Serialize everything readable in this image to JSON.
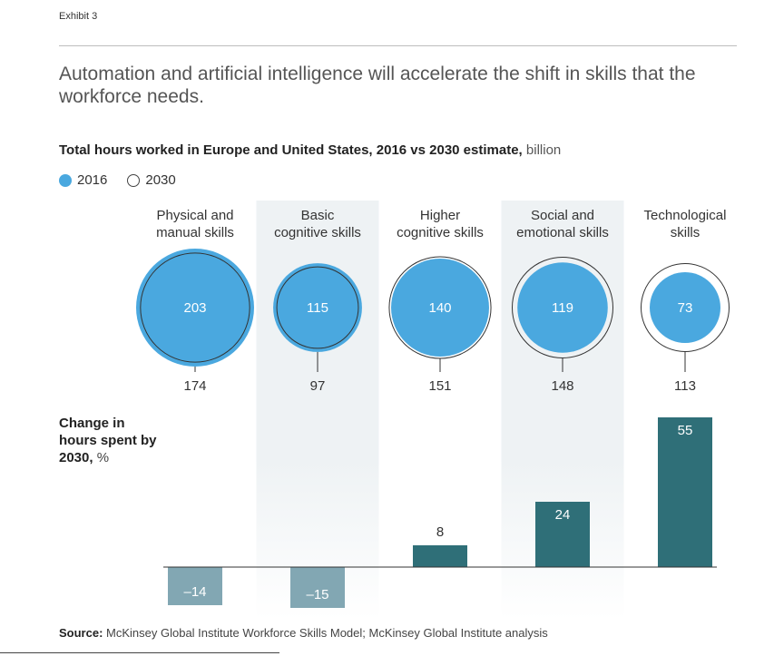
{
  "exhibit": "Exhibit 3",
  "headline": "Automation and artificial intelligence will accelerate the shift in skills that the workforce needs.",
  "subtitle": {
    "bold": "Total hours worked in Europe and United States, 2016 vs 2030 estimate,",
    "unit": "billion"
  },
  "legend": {
    "label_2016": "2016",
    "label_2030": "2030"
  },
  "colors": {
    "circle_2016": "#4aa8df",
    "bar_positive": "#2f6f78",
    "bar_negative": "#82a7b3",
    "band": "#eef2f4"
  },
  "change_label": {
    "bold": "Change in hours spent by 2030,",
    "unit": "%"
  },
  "source": {
    "label": "Source:",
    "text": "McKinsey Global Institute Workforce Skills Model; McKinsey Global Institute analysis"
  },
  "chart_data": {
    "type": "bar",
    "categories": [
      "Physical and manual skills",
      "Basic cognitive skills",
      "Higher cognitive skills",
      "Social and emotional skills",
      "Technological skills"
    ],
    "category_lines": [
      [
        "Physical and",
        "manual skills"
      ],
      [
        "Basic",
        "cognitive skills"
      ],
      [
        "Higher",
        "cognitive skills"
      ],
      [
        "Social and",
        "emotional skills"
      ],
      [
        "Technological",
        "skills"
      ]
    ],
    "hours_2016": [
      203,
      115,
      140,
      119,
      73
    ],
    "hours_2030": [
      174,
      97,
      151,
      148,
      113
    ],
    "change_pct": [
      -14,
      -15,
      8,
      24,
      55
    ],
    "change_labels": [
      "–14",
      "–15",
      "8",
      "24",
      "55"
    ],
    "shaded_categories": [
      1,
      3
    ]
  }
}
